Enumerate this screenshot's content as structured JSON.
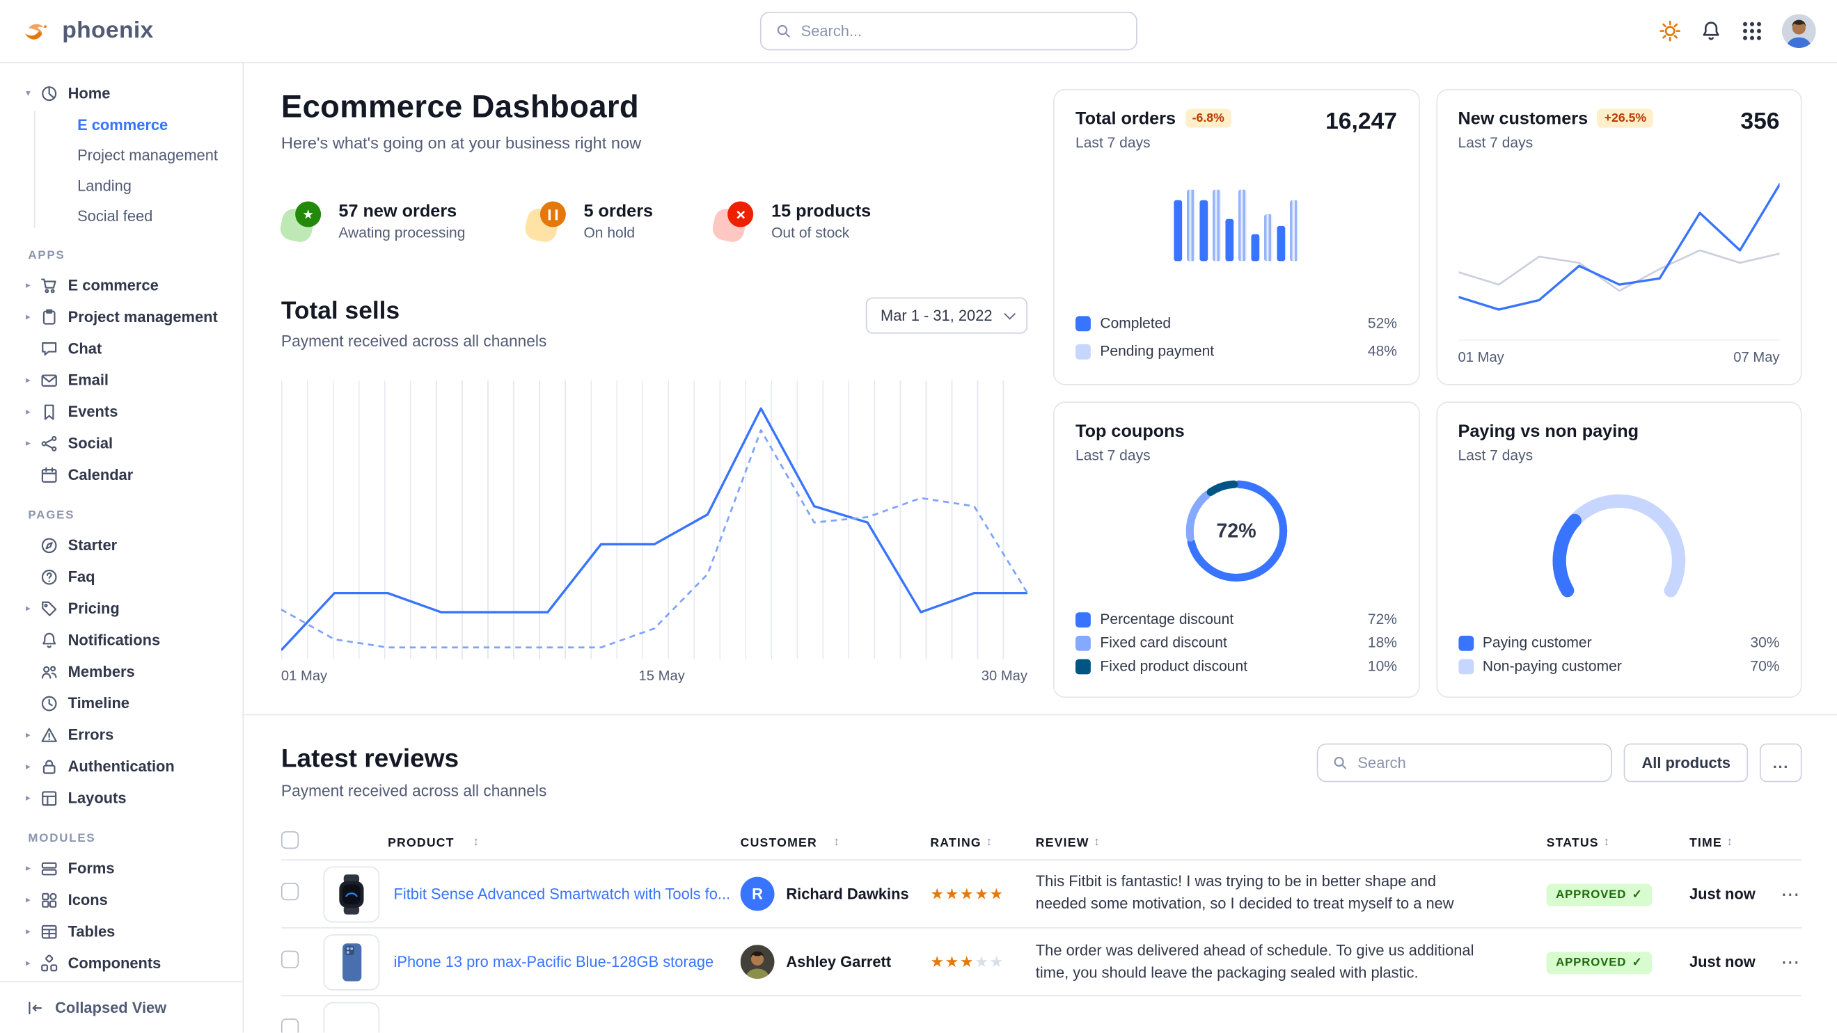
{
  "theme": {
    "primary": "#3874ff",
    "text_dark": "#141824",
    "text_body": "#31374a",
    "text_muted": "#525b75",
    "border": "#e3e6ed",
    "success_bg": "#d9fbd0",
    "success_text": "#1c6c09",
    "warning_bg": "#ffefca",
    "warning_text": "#bc3803",
    "star": "#e5780b"
  },
  "topbar": {
    "brand": "phoenix",
    "search_placeholder": "Search...",
    "icons": [
      "sun-icon",
      "bell-icon",
      "apps-grid-icon",
      "user-avatar"
    ]
  },
  "sidebar": {
    "home": {
      "label": "Home",
      "icon": "pie-chart-icon",
      "children": [
        "E commerce",
        "Project management",
        "Landing",
        "Social feed"
      ],
      "active_child": "E commerce"
    },
    "sections": [
      {
        "title": "APPS",
        "items": [
          {
            "label": "E commerce",
            "icon": "cart-icon"
          },
          {
            "label": "Project management",
            "icon": "clipboard-icon"
          },
          {
            "label": "Chat",
            "icon": "chat-icon"
          },
          {
            "label": "Email",
            "icon": "envelope-icon"
          },
          {
            "label": "Events",
            "icon": "bookmark-icon"
          },
          {
            "label": "Social",
            "icon": "share-icon"
          },
          {
            "label": "Calendar",
            "icon": "calendar-icon"
          }
        ]
      },
      {
        "title": "PAGES",
        "items": [
          {
            "label": "Starter",
            "icon": "compass-icon"
          },
          {
            "label": "Faq",
            "icon": "question-circle-icon"
          },
          {
            "label": "Pricing",
            "icon": "tag-icon"
          },
          {
            "label": "Notifications",
            "icon": "bell-icon"
          },
          {
            "label": "Members",
            "icon": "users-icon"
          },
          {
            "label": "Timeline",
            "icon": "clock-icon"
          },
          {
            "label": "Errors",
            "icon": "warning-icon"
          },
          {
            "label": "Authentication",
            "icon": "lock-icon"
          },
          {
            "label": "Layouts",
            "icon": "layout-icon"
          }
        ]
      },
      {
        "title": "MODULES",
        "items": [
          {
            "label": "Forms",
            "icon": "form-icon"
          },
          {
            "label": "Icons",
            "icon": "shapes-icon"
          },
          {
            "label": "Tables",
            "icon": "table-icon"
          },
          {
            "label": "Components",
            "icon": "components-icon"
          }
        ]
      }
    ],
    "footer": {
      "label": "Collapsed View",
      "icon": "collapse-icon"
    }
  },
  "page": {
    "title": "Ecommerce Dashboard",
    "subtitle": "Here's what's going on at your business right now"
  },
  "stats": [
    {
      "value": "57 new orders",
      "label": "Awating processing",
      "icon": "star-icon",
      "accent": "#23890b",
      "soft": "#bee8b4"
    },
    {
      "value": "5 orders",
      "label": "On hold",
      "icon": "pause-icon",
      "accent": "#e5780b",
      "soft": "#ffe3a6"
    },
    {
      "value": "15 products",
      "label": "Out of stock",
      "icon": "x-icon",
      "accent": "#ed2000",
      "soft": "#ffc7c2"
    }
  ],
  "total_sells": {
    "title": "Total sells",
    "subtitle": "Payment received across all channels",
    "date_range": "Mar 1 - 31, 2022",
    "chart": {
      "type": "line",
      "x_labels": [
        "01 May",
        "15 May",
        "30 May"
      ],
      "ylim": [
        0,
        100
      ],
      "series": [
        {
          "name": "this-period",
          "style": "solid",
          "color": "#3874ff",
          "width": 2,
          "values": [
            2,
            23,
            23,
            16,
            16,
            16,
            41,
            41,
            52,
            91,
            55,
            49,
            16,
            23,
            23
          ]
        },
        {
          "name": "last-period",
          "style": "dashed",
          "color": "#7ea2ff",
          "width": 1.6,
          "values": [
            17,
            6,
            3,
            3,
            3,
            3,
            3,
            10,
            30,
            83,
            49,
            51,
            58,
            55,
            23
          ]
        }
      ]
    }
  },
  "cards": {
    "total_orders": {
      "title": "Total orders",
      "badge": "-6.8%",
      "period": "Last 7 days",
      "value": "16,247",
      "chart": {
        "type": "bar",
        "values": [
          68,
          80,
          68,
          80,
          48,
          80,
          30,
          52,
          40,
          68
        ]
      },
      "legend": [
        {
          "label": "Completed",
          "value": "52%",
          "color": "#3874ff"
        },
        {
          "label": "Pending payment",
          "value": "48%",
          "color": "#c7d6ff"
        }
      ]
    },
    "new_customers": {
      "title": "New customers",
      "badge": "+26.5%",
      "period": "Last 7 days",
      "value": "356",
      "chart": {
        "type": "line",
        "x_labels": [
          "01 May",
          "07 May"
        ],
        "series": [
          {
            "name": "previous",
            "style": "solid",
            "color": "#cbd0dd",
            "width": 1.6,
            "values": [
              38,
              30,
              48,
              44,
              26,
              40,
              52,
              44,
              50
            ]
          },
          {
            "name": "current",
            "style": "solid",
            "color": "#3874ff",
            "width": 2,
            "values": [
              22,
              14,
              20,
              42,
              30,
              34,
              76,
              52,
              95
            ]
          }
        ]
      }
    },
    "top_coupons": {
      "title": "Top coupons",
      "period": "Last 7 days",
      "center_label": "72%",
      "chart": {
        "type": "pie"
      },
      "segments": [
        {
          "label": "Percentage discount",
          "value": 72,
          "display": "72%",
          "color": "#3874ff"
        },
        {
          "label": "Fixed card discount",
          "value": 18,
          "display": "18%",
          "color": "#85a9ff"
        },
        {
          "label": "Fixed product discount",
          "value": 10,
          "display": "10%",
          "color": "#005585"
        }
      ]
    },
    "paying": {
      "title": "Paying vs non paying",
      "period": "Last 7 days",
      "chart": {
        "type": "gauge"
      },
      "segments": [
        {
          "label": "Paying customer",
          "value": 30,
          "display": "30%",
          "color": "#3874ff"
        },
        {
          "label": "Non-paying customer",
          "value": 70,
          "display": "70%",
          "color": "#c7d6ff"
        }
      ]
    }
  },
  "reviews": {
    "title": "Latest reviews",
    "subtitle": "Payment received across all channels",
    "search_placeholder": "Search",
    "all_products_button": "All products",
    "more_button": "...",
    "columns": [
      "PRODUCT",
      "CUSTOMER",
      "RATING",
      "REVIEW",
      "STATUS",
      "TIME"
    ],
    "rows": [
      {
        "product": "Fitbit Sense Advanced Smartwatch with Tools fo...",
        "customer": "Richard Dawkins",
        "avatar_initial": "R",
        "rating": 5,
        "review": "This Fitbit is fantastic! I was trying to be in better shape and needed some motivation, so I decided to treat myself to a new Fitbit.",
        "status": "APPROVED",
        "time": "Just now"
      },
      {
        "product": "iPhone 13 pro max-Pacific Blue-128GB storage",
        "customer": "Ashley Garrett",
        "rating": 3,
        "review": "The order was delivered ahead of schedule. To give us additional time, you should leave the packaging sealed with plastic.",
        "status": "APPROVED",
        "time": "Just now"
      }
    ]
  }
}
